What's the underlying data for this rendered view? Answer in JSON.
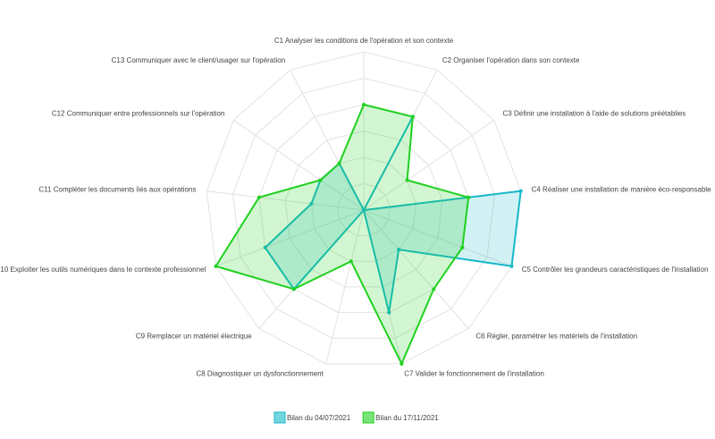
{
  "chart_data": {
    "type": "radar",
    "categories": [
      "C1 Analyser les conditions de l'opération et son contexte",
      "C2 Organiser l'opération dans son contexte",
      "C3 Définir une installation à l'aide de solutions préétablies",
      "C4 Réaliser une installation de manière éco-responsable",
      "C5 Contrôler les grandeurs caractéristiques de l'installation",
      "C6 Régler, paramétrer les matériels de l'installation",
      "C7 Valider le fonctionnement de l'installation",
      "C8 Diagnostiquer un dysfonctionnement",
      "C9 Remplacer un matériel électrique",
      "C10 Exploiter les outils numériques dans le contexte professionnel",
      "C11 Compléter les documents liés aux opérations",
      "C12 Communiquer entre professionnels sur l'opération",
      "C13 Communiquer avec le client/usager sur l'opération"
    ],
    "series": [
      {
        "name": "Bilan du 04/07/2021",
        "color": "#17b8c9",
        "values": [
          0,
          2,
          0,
          3,
          3,
          1,
          2,
          0,
          2,
          2,
          1,
          1,
          1
        ]
      },
      {
        "name": "Bilan du 17/11/2021",
        "color": "#1fd11f",
        "values": [
          2,
          2,
          1,
          2,
          2,
          2,
          3,
          1,
          2,
          3,
          2,
          1,
          1
        ]
      }
    ],
    "ylim": [
      0,
      3
    ],
    "yticks": [
      0.5,
      1,
      1.5,
      2,
      2.5,
      3
    ],
    "grid": true
  }
}
